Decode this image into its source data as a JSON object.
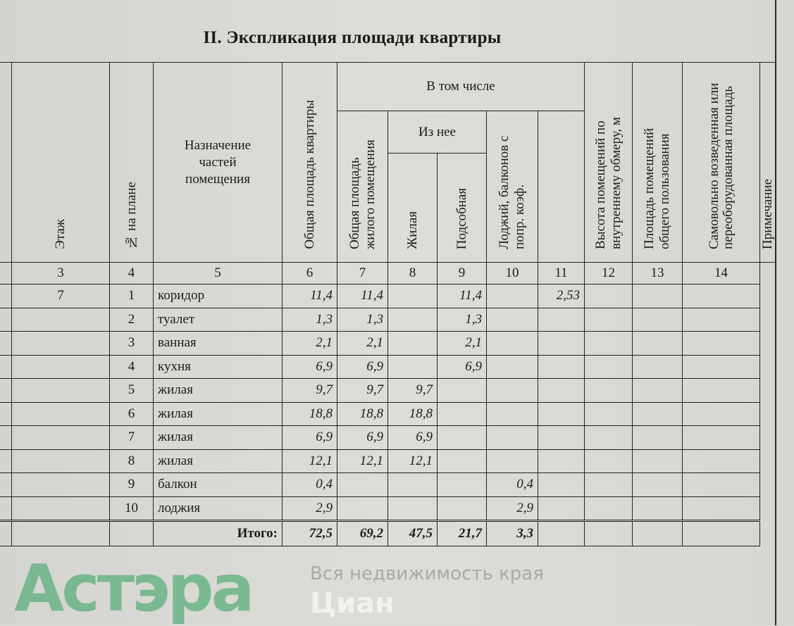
{
  "title": "II. Экспликация площади квартиры",
  "headers": {
    "floor": "Этаж",
    "plan_no": "№ на плане",
    "purpose": "Назначение частей помещения",
    "total_area": "Общая площадь квартиры",
    "including": "В том числе",
    "living_total": "Общая площадь жилого помещения",
    "of_which": "Из нее",
    "living": "Жилая",
    "auxiliary": "Подсобная",
    "loggias": "Лоджий, балконов с попр. коэф.",
    "height": "Высота помещений по внутреннему обмеру, м",
    "common": "Площадь помещений общего пользования",
    "unauthorized": "Самовольно возведенная или переоборудованная площадь",
    "note": "Примечание"
  },
  "column_numbers": [
    "3",
    "4",
    "5",
    "6",
    "7",
    "8",
    "9",
    "10",
    "11",
    "12",
    "13",
    "14"
  ],
  "rows": [
    {
      "floor": "7",
      "no": "1",
      "name": "коридор",
      "total": "11,4",
      "living_total": "11,4",
      "living": "",
      "aux": "11,4",
      "loggia": "",
      "height": "2,53"
    },
    {
      "floor": "",
      "no": "2",
      "name": "туалет",
      "total": "1,3",
      "living_total": "1,3",
      "living": "",
      "aux": "1,3",
      "loggia": "",
      "height": ""
    },
    {
      "floor": "",
      "no": "3",
      "name": "ванная",
      "total": "2,1",
      "living_total": "2,1",
      "living": "",
      "aux": "2,1",
      "loggia": "",
      "height": ""
    },
    {
      "floor": "",
      "no": "4",
      "name": "кухня",
      "total": "6,9",
      "living_total": "6,9",
      "living": "",
      "aux": "6,9",
      "loggia": "",
      "height": ""
    },
    {
      "floor": "",
      "no": "5",
      "name": "жилая",
      "total": "9,7",
      "living_total": "9,7",
      "living": "9,7",
      "aux": "",
      "loggia": "",
      "height": ""
    },
    {
      "floor": "",
      "no": "6",
      "name": "жилая",
      "total": "18,8",
      "living_total": "18,8",
      "living": "18,8",
      "aux": "",
      "loggia": "",
      "height": ""
    },
    {
      "floor": "",
      "no": "7",
      "name": "жилая",
      "total": "6,9",
      "living_total": "6,9",
      "living": "6,9",
      "aux": "",
      "loggia": "",
      "height": ""
    },
    {
      "floor": "",
      "no": "8",
      "name": "жилая",
      "total": "12,1",
      "living_total": "12,1",
      "living": "12,1",
      "aux": "",
      "loggia": "",
      "height": ""
    },
    {
      "floor": "",
      "no": "9",
      "name": "балкон",
      "total": "0,4",
      "living_total": "",
      "living": "",
      "aux": "",
      "loggia": "0,4",
      "height": ""
    },
    {
      "floor": "",
      "no": "10",
      "name": "лоджия",
      "total": "2,9",
      "living_total": "",
      "living": "",
      "aux": "",
      "loggia": "2,9",
      "height": ""
    }
  ],
  "totals": {
    "label": "Итого:",
    "total": "72,5",
    "living_total": "69,2",
    "living": "47,5",
    "aux": "21,7",
    "loggia": "3,3"
  },
  "watermarks": {
    "logo": "Астэра",
    "tagline": "Вся недвижимость края",
    "cian": "Циан"
  }
}
